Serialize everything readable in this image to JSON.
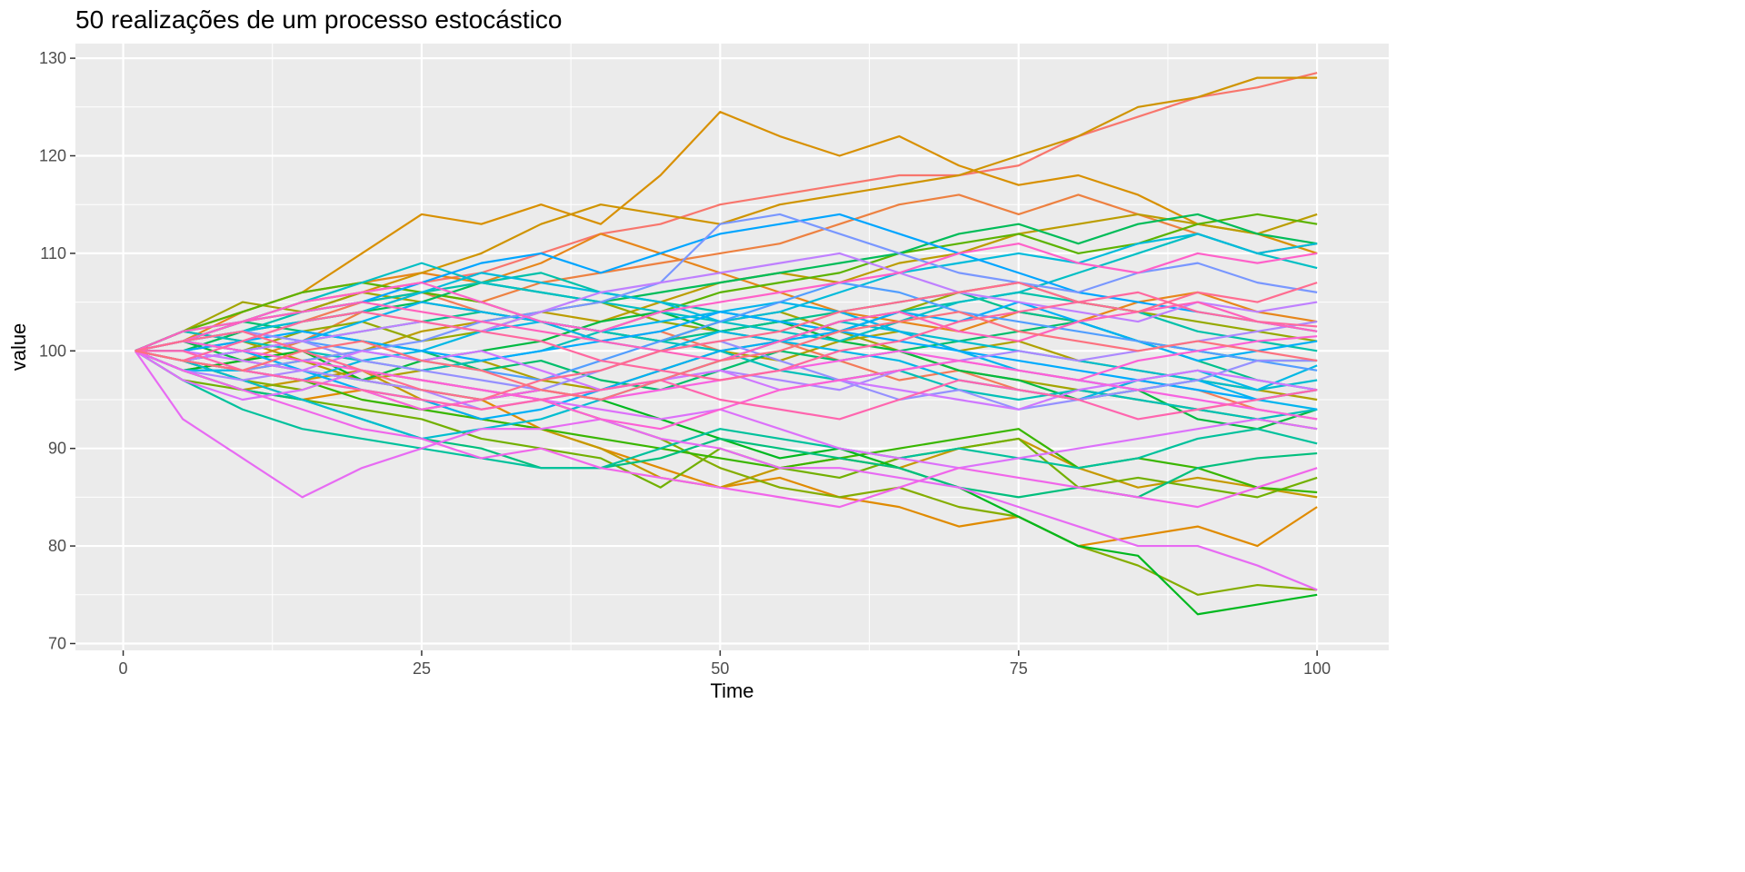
{
  "chart_data": {
    "type": "line",
    "title": "50 realizações de um processo estocástico",
    "xlabel": "Time",
    "ylabel": "value",
    "xlim": [
      -4,
      106
    ],
    "ylim": [
      69.3,
      131.5
    ],
    "xticks": [
      0,
      25,
      50,
      75,
      100
    ],
    "yticks": [
      70,
      80,
      90,
      100,
      110,
      120,
      130
    ],
    "grid": true,
    "legend": "none",
    "panel_background": "#EBEBEB",
    "x": [
      1,
      5,
      10,
      15,
      20,
      25,
      30,
      35,
      40,
      45,
      50,
      55,
      60,
      65,
      70,
      75,
      80,
      85,
      90,
      95,
      100
    ],
    "series": [
      {
        "name": "1",
        "values": [
          100,
          101,
          103,
          104,
          106,
          107,
          108,
          110,
          112,
          113,
          115,
          116,
          117,
          118,
          118,
          119,
          122,
          124,
          126,
          127,
          128.5
        ]
      },
      {
        "name": "2",
        "values": [
          100,
          102,
          101,
          103,
          105,
          106,
          104,
          103,
          101,
          102,
          100,
          101,
          99,
          97,
          98,
          96,
          95,
          97,
          96,
          94,
          93
        ]
      },
      {
        "name": "3",
        "values": [
          100,
          98,
          99,
          101,
          104,
          106,
          105,
          107,
          108,
          109,
          110,
          111,
          113,
          115,
          116,
          114,
          116,
          114,
          112,
          110,
          111
        ]
      },
      {
        "name": "4",
        "values": [
          100,
          101,
          104,
          106,
          107,
          108,
          107,
          109,
          112,
          110,
          108,
          106,
          104,
          103,
          102,
          104,
          103,
          105,
          106,
          104,
          103
        ]
      },
      {
        "name": "5",
        "values": [
          100,
          99,
          97,
          95,
          96,
          94,
          95,
          92,
          90,
          88,
          86,
          87,
          85,
          84,
          82,
          83,
          80,
          81,
          82,
          80,
          84
        ]
      },
      {
        "name": "6",
        "values": [
          100,
          102,
          104,
          106,
          110,
          114,
          113,
          115,
          113,
          118,
          124.5,
          122,
          120,
          122,
          119,
          117,
          118,
          116,
          113,
          112,
          110
        ]
      },
      {
        "name": "7",
        "values": [
          100,
          101,
          103,
          105,
          106,
          108,
          110,
          113,
          115,
          114,
          113,
          115,
          116,
          117,
          118,
          120,
          122,
          125,
          126,
          128,
          128
        ]
      },
      {
        "name": "8",
        "values": [
          100,
          98,
          96,
          97,
          98,
          95,
          93,
          92,
          90,
          87,
          86,
          88,
          89,
          88,
          90,
          91,
          88,
          86,
          87,
          86,
          85
        ]
      },
      {
        "name": "9",
        "values": [
          100,
          100,
          101,
          99,
          100,
          102,
          103,
          104,
          103,
          105,
          107,
          108,
          107,
          109,
          110,
          112,
          113,
          114,
          113,
          112,
          114
        ]
      },
      {
        "name": "10",
        "values": [
          100,
          99,
          98,
          99,
          97,
          98,
          99,
          97,
          96,
          98,
          100,
          99,
          101,
          102,
          100,
          101,
          99,
          98,
          97,
          96,
          95
        ]
      },
      {
        "name": "11",
        "values": [
          100,
          102,
          105,
          104,
          106,
          105,
          104,
          103,
          102,
          101,
          103,
          104,
          102,
          100,
          98,
          97,
          96,
          95,
          94,
          93,
          92
        ]
      },
      {
        "name": "12",
        "values": [
          100,
          101,
          100,
          102,
          103,
          101,
          102,
          104,
          105,
          103,
          102,
          101,
          103,
          104,
          106,
          107,
          105,
          104,
          103,
          102,
          101
        ]
      },
      {
        "name": "13",
        "values": [
          100,
          99,
          97,
          96,
          98,
          97,
          96,
          95,
          93,
          91,
          88,
          86,
          85,
          86,
          84,
          83,
          80,
          78,
          75,
          76,
          75.5
        ]
      },
      {
        "name": "14",
        "values": [
          100,
          97,
          96,
          95,
          94,
          93,
          91,
          90,
          89,
          86,
          90,
          88,
          87,
          89,
          90,
          91,
          86,
          87,
          86,
          85,
          87
        ]
      },
      {
        "name": "15",
        "values": [
          100,
          102,
          104,
          106,
          107,
          106,
          105,
          103,
          102,
          104,
          106,
          107,
          108,
          110,
          111,
          112,
          110,
          111,
          113,
          114,
          113
        ]
      },
      {
        "name": "16",
        "values": [
          100,
          99,
          98,
          97,
          95,
          94,
          93,
          92,
          91,
          90,
          89,
          88,
          89,
          90,
          91,
          92,
          88,
          89,
          88,
          86,
          85.5
        ]
      },
      {
        "name": "17",
        "values": [
          100,
          98,
          99,
          100,
          97,
          96,
          95,
          96,
          95,
          93,
          91,
          89,
          90,
          88,
          86,
          83,
          80,
          79,
          73,
          74,
          75
        ]
      },
      {
        "name": "18",
        "values": [
          100,
          101,
          99,
          98,
          97,
          99,
          100,
          101,
          103,
          104,
          102,
          103,
          101,
          100,
          98,
          97,
          95,
          96,
          93,
          92,
          94
        ]
      },
      {
        "name": "19",
        "values": [
          100,
          100,
          102,
          103,
          104,
          105,
          107,
          106,
          105,
          106,
          107,
          108,
          109,
          110,
          112,
          113,
          111,
          113,
          114,
          112,
          111
        ]
      },
      {
        "name": "20",
        "values": [
          100,
          101,
          103,
          102,
          101,
          100,
          98,
          99,
          97,
          96,
          98,
          100,
          99,
          100,
          101,
          102,
          103,
          101,
          100,
          99,
          99
        ]
      },
      {
        "name": "21",
        "values": [
          100,
          98,
          96,
          95,
          93,
          91,
          90,
          88,
          88,
          89,
          91,
          90,
          89,
          88,
          86,
          85,
          86,
          85,
          88,
          89,
          89.5
        ]
      },
      {
        "name": "22",
        "values": [
          100,
          99,
          100,
          101,
          102,
          103,
          104,
          103,
          102,
          101,
          102,
          103,
          104,
          105,
          106,
          104,
          103,
          101,
          99,
          97,
          96
        ]
      },
      {
        "name": "23",
        "values": [
          100,
          97,
          94,
          92,
          91,
          90,
          89,
          88,
          88,
          90,
          92,
          91,
          90,
          89,
          90,
          89,
          88,
          89,
          91,
          92,
          90.5
        ]
      },
      {
        "name": "24",
        "values": [
          100,
          101,
          102,
          104,
          105,
          106,
          107,
          108,
          106,
          105,
          104,
          103,
          102,
          104,
          105,
          106,
          105,
          104,
          102,
          101,
          100
        ]
      },
      {
        "name": "25",
        "values": [
          100,
          102,
          101,
          100,
          99,
          98,
          99,
          100,
          102,
          101,
          100,
          98,
          97,
          98,
          96,
          95,
          96,
          95,
          94,
          93,
          94
        ]
      },
      {
        "name": "26",
        "values": [
          100,
          101,
          103,
          105,
          107,
          109,
          107,
          106,
          105,
          104,
          103,
          102,
          101,
          103,
          105,
          106,
          108,
          110,
          112,
          110,
          108.5
        ]
      },
      {
        "name": "27",
        "values": [
          100,
          99,
          97,
          95,
          93,
          91,
          92,
          93,
          95,
          97,
          99,
          101,
          103,
          102,
          101,
          100,
          99,
          98,
          97,
          96,
          97
        ]
      },
      {
        "name": "28",
        "values": [
          100,
          101,
          102,
          103,
          104,
          106,
          108,
          107,
          106,
          105,
          103,
          104,
          106,
          108,
          109,
          110,
          109,
          111,
          112,
          110,
          111
        ]
      },
      {
        "name": "29",
        "values": [
          100,
          98,
          98,
          97,
          99,
          100,
          102,
          103,
          101,
          100,
          102,
          101,
          100,
          99,
          97,
          96,
          95,
          97,
          98,
          96,
          98.5
        ]
      },
      {
        "name": "30",
        "values": [
          100,
          99,
          100,
          101,
          103,
          105,
          104,
          103,
          102,
          103,
          104,
          105,
          104,
          102,
          100,
          98,
          97,
          96,
          97,
          95,
          94
        ]
      },
      {
        "name": "31",
        "values": [
          100,
          101,
          100,
          98,
          96,
          95,
          93,
          94,
          96,
          98,
          100,
          101,
          102,
          104,
          103,
          105,
          103,
          101,
          99,
          100,
          101
        ]
      },
      {
        "name": "32",
        "values": [
          100,
          100,
          101,
          102,
          101,
          100,
          99,
          100,
          101,
          102,
          104,
          103,
          102,
          101,
          100,
          99,
          98,
          97,
          96,
          95,
          96
        ]
      },
      {
        "name": "33",
        "values": [
          100,
          102,
          103,
          104,
          105,
          107,
          109,
          110,
          108,
          110,
          112,
          113,
          114,
          112,
          110,
          108,
          106,
          105,
          104,
          103,
          102
        ]
      },
      {
        "name": "34",
        "values": [
          100,
          101,
          102,
          101,
          100,
          99,
          98,
          97,
          99,
          101,
          103,
          105,
          107,
          106,
          104,
          103,
          102,
          101,
          100,
          99,
          98
        ]
      },
      {
        "name": "35",
        "values": [
          100,
          99,
          98,
          99,
          100,
          101,
          103,
          104,
          105,
          107,
          113,
          114,
          112,
          110,
          108,
          107,
          106,
          108,
          109,
          107,
          106
        ]
      },
      {
        "name": "36",
        "values": [
          100,
          101,
          102,
          101,
          99,
          98,
          97,
          96,
          98,
          100,
          101,
          99,
          97,
          95,
          96,
          94,
          95,
          96,
          97,
          99,
          99
        ]
      },
      {
        "name": "37",
        "values": [
          100,
          98,
          97,
          98,
          97,
          96,
          94,
          95,
          96,
          97,
          98,
          97,
          96,
          98,
          99,
          100,
          99,
          100,
          101,
          102,
          103
        ]
      },
      {
        "name": "38",
        "values": [
          100,
          99,
          100,
          101,
          102,
          103,
          102,
          104,
          106,
          107,
          108,
          109,
          110,
          108,
          106,
          105,
          104,
          103,
          105,
          104,
          105
        ]
      },
      {
        "name": "39",
        "values": [
          100,
          100,
          99,
          98,
          100,
          99,
          100,
          98,
          96,
          97,
          98,
          96,
          97,
          96,
          95,
          94,
          96,
          97,
          98,
          97,
          96
        ]
      },
      {
        "name": "40",
        "values": [
          100,
          97,
          95,
          96,
          98,
          97,
          96,
          95,
          94,
          93,
          94,
          92,
          90,
          89,
          88,
          89,
          90,
          91,
          92,
          93,
          92
        ]
      },
      {
        "name": "41",
        "values": [
          100,
          93,
          89,
          85,
          88,
          90,
          92,
          92,
          93,
          91,
          90,
          88,
          88,
          87,
          86,
          84,
          82,
          80,
          80,
          78,
          75.5
        ]
      },
      {
        "name": "42",
        "values": [
          100,
          98,
          96,
          94,
          92,
          91,
          89,
          90,
          88,
          87,
          86,
          85,
          84,
          86,
          88,
          87,
          86,
          85,
          84,
          86,
          88
        ]
      },
      {
        "name": "43",
        "values": [
          100,
          99,
          98,
          97,
          96,
          94,
          95,
          96,
          95,
          96,
          97,
          98,
          99,
          100,
          99,
          98,
          97,
          96,
          95,
          94,
          93
        ]
      },
      {
        "name": "44",
        "values": [
          100,
          101,
          100,
          99,
          98,
          97,
          96,
          95,
          93,
          92,
          94,
          96,
          97,
          98,
          99,
          98,
          97,
          99,
          100,
          101,
          101.5
        ]
      },
      {
        "name": "45",
        "values": [
          100,
          101,
          103,
          105,
          106,
          107,
          105,
          103,
          102,
          104,
          105,
          106,
          107,
          108,
          110,
          111,
          109,
          108,
          110,
          109,
          110
        ]
      },
      {
        "name": "46",
        "values": [
          100,
          102,
          103,
          104,
          105,
          104,
          103,
          102,
          101,
          100,
          99,
          101,
          103,
          104,
          102,
          101,
          103,
          104,
          105,
          103,
          102
        ]
      },
      {
        "name": "47",
        "values": [
          100,
          100,
          98,
          97,
          96,
          95,
          94,
          95,
          96,
          97,
          95,
          94,
          93,
          95,
          97,
          96,
          95,
          93,
          94,
          95,
          96
        ]
      },
      {
        "name": "48",
        "values": [
          100,
          99,
          101,
          103,
          104,
          103,
          102,
          101,
          99,
          98,
          97,
          98,
          100,
          101,
          103,
          104,
          105,
          106,
          104,
          103,
          102.5
        ]
      },
      {
        "name": "49",
        "values": [
          100,
          101,
          102,
          100,
          98,
          96,
          95,
          97,
          98,
          100,
          101,
          102,
          104,
          105,
          106,
          107,
          105,
          104,
          106,
          105,
          107
        ]
      },
      {
        "name": "50",
        "values": [
          100,
          99,
          98,
          100,
          101,
          99,
          98,
          96,
          95,
          97,
          99,
          100,
          102,
          103,
          104,
          102,
          101,
          100,
          101,
          100,
          99
        ]
      }
    ]
  }
}
